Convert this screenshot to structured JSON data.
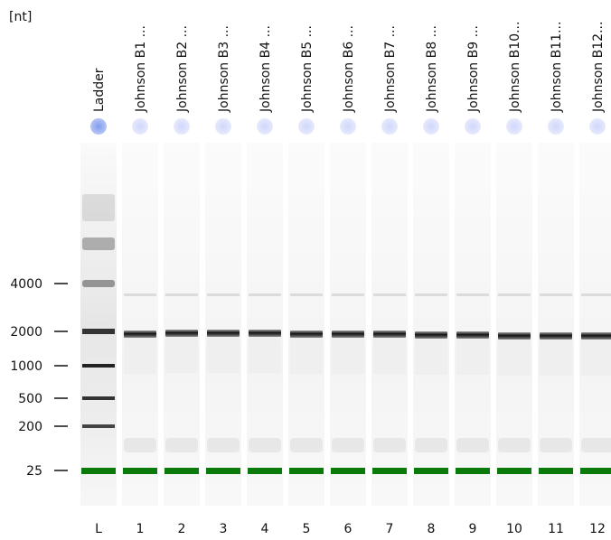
{
  "unit_label": "[nt]",
  "size_markers": [
    "4000",
    "2000",
    "1000",
    "500",
    "200",
    "25"
  ],
  "lanes": [
    {
      "number": "L",
      "name": "Ladder",
      "is_ladder": true
    },
    {
      "number": "1",
      "name": "Johnson B1 ...",
      "is_ladder": false
    },
    {
      "number": "2",
      "name": "Johnson B2 ...",
      "is_ladder": false
    },
    {
      "number": "3",
      "name": "Johnson B3 ...",
      "is_ladder": false
    },
    {
      "number": "4",
      "name": "Johnson B4 ...",
      "is_ladder": false
    },
    {
      "number": "5",
      "name": "Johnson B5 ...",
      "is_ladder": false
    },
    {
      "number": "6",
      "name": "Johnson B6 ...",
      "is_ladder": false
    },
    {
      "number": "7",
      "name": "Johnson B7 ...",
      "is_ladder": false
    },
    {
      "number": "8",
      "name": "Johnson B8 ...",
      "is_ladder": false
    },
    {
      "number": "9",
      "name": "Johnson B9 ...",
      "is_ladder": false
    },
    {
      "number": "10",
      "name": "Johnson B10...",
      "is_ladder": false
    },
    {
      "number": "11",
      "name": "Johnson B11...",
      "is_ladder": false
    },
    {
      "number": "12",
      "name": "Johnson B12...",
      "is_ladder": false
    }
  ],
  "colors": {
    "marker_band": "#0a7a0a",
    "ladder_dot": "#8fa8ee",
    "sample_dot": "#d6dbf8",
    "band": "#1a1a1a"
  }
}
